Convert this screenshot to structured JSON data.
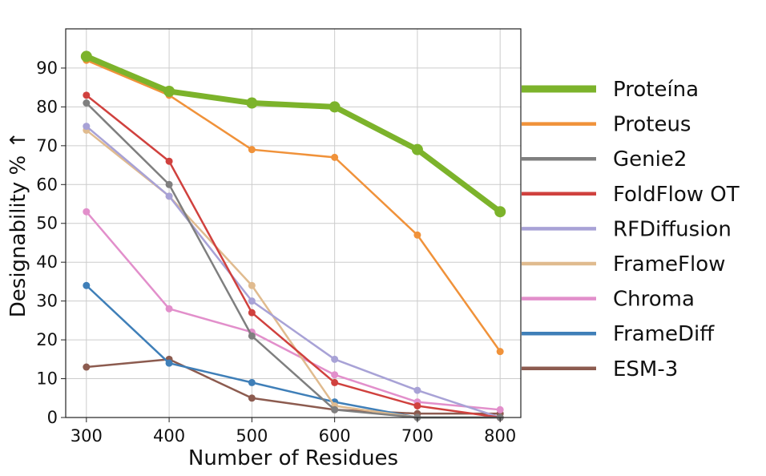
{
  "chart_data": {
    "type": "line",
    "xlabel": "Number of Residues",
    "ylabel": "Designability % ↑",
    "xlim": [
      275,
      825
    ],
    "ylim": [
      0,
      100
    ],
    "grid": true,
    "legend_position": "right-outside",
    "x": [
      300,
      400,
      500,
      600,
      700,
      800
    ],
    "xticks": [
      300,
      400,
      500,
      600,
      700,
      800
    ],
    "yticks": [
      0,
      10,
      20,
      30,
      40,
      50,
      60,
      70,
      80,
      90
    ],
    "series": [
      {
        "name": "Proteína",
        "color": "#7cb32b",
        "emphasis": true,
        "values": [
          93,
          84,
          81,
          80,
          69,
          53
        ]
      },
      {
        "name": "Proteus",
        "color": "#f0923a",
        "values": [
          92,
          83,
          69,
          67,
          47,
          17
        ]
      },
      {
        "name": "Genie2",
        "color": "#7f7f7f",
        "values": [
          81,
          60,
          21,
          2,
          0,
          0
        ]
      },
      {
        "name": "FoldFlow OT",
        "color": "#d0413e",
        "values": [
          83,
          66,
          27,
          9,
          3,
          0
        ]
      },
      {
        "name": "RFDiffusion",
        "color": "#a8a2d6",
        "values": [
          75,
          57,
          30,
          15,
          7,
          0
        ]
      },
      {
        "name": "FrameFlow",
        "color": "#e0bb8f",
        "values": [
          74,
          57,
          34,
          3,
          0,
          0
        ]
      },
      {
        "name": "Chroma",
        "color": "#e28fcb",
        "values": [
          53,
          28,
          22,
          11,
          4,
          2
        ]
      },
      {
        "name": "FrameDiff",
        "color": "#3f7fb8",
        "values": [
          34,
          14,
          9,
          4,
          0,
          0
        ]
      },
      {
        "name": "ESM-3",
        "color": "#8c5b4f",
        "values": [
          13,
          15,
          5,
          2,
          1,
          1
        ]
      }
    ]
  }
}
